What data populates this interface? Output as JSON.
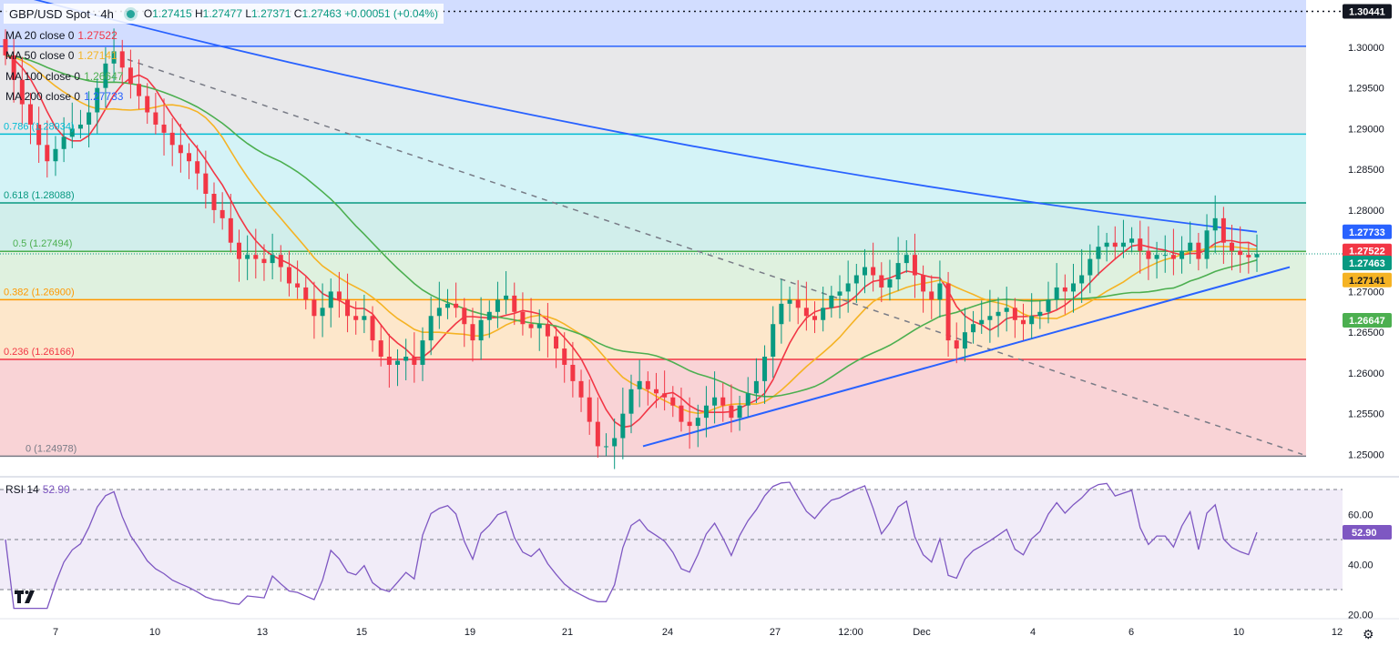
{
  "header": {
    "symbol": "GBP/USD Spot · 4h",
    "ohlc_prefix": "O",
    "open": "1.27415",
    "high_prefix": "H",
    "high": "1.27477",
    "low_prefix": "L",
    "low": "1.27371",
    "close_prefix": "C",
    "close": "1.27463",
    "change": "+0.00051 (+0.04%)"
  },
  "indicators": [
    {
      "label": "MA 20 close 0",
      "value": "1.27522",
      "color": "#f23645"
    },
    {
      "label": "MA 50 close 0",
      "value": "1.27141",
      "color": "#f5b324"
    },
    {
      "label": "MA 100 close 0",
      "value": "1.26647",
      "color": "#4caf50"
    },
    {
      "label": "MA 200 close 0",
      "value": "1.27733",
      "color": "#2962ff"
    }
  ],
  "rsi": {
    "label": "RSI 14",
    "value": "52.90",
    "color": "#7e57c2",
    "ticks": [
      "60.00",
      "40.00",
      "20.00"
    ],
    "upper": 70,
    "lower": 30,
    "mid": 50
  },
  "fib_levels": [
    {
      "ratio": "0",
      "price": 1.24978,
      "label": "0 (1.24978)",
      "color": "#787b86"
    },
    {
      "ratio": "0.236",
      "price": 1.26166,
      "label": "0.236 (1.26166)",
      "color": "#f23645"
    },
    {
      "ratio": "0.382",
      "price": 1.269,
      "label": "0.382 (1.26900)",
      "color": "#ff9800"
    },
    {
      "ratio": "0.5",
      "price": 1.27494,
      "label": "0.5 (1.27494)",
      "color": "#4caf50"
    },
    {
      "ratio": "0.618",
      "price": 1.28088,
      "label": "0.618 (1.28088)",
      "color": "#089981"
    },
    {
      "ratio": "0.786",
      "price": 1.28934,
      "label": "0.786 (1.28934)",
      "color": "#00bcd4"
    },
    {
      "ratio": "1",
      "price": 1.30011,
      "label": "1 (1.30011)",
      "color": "#2962ff"
    }
  ],
  "price_axis": {
    "ticks": [
      "1.30000",
      "1.29500",
      "1.29000",
      "1.28500",
      "1.28000",
      "1.27500",
      "1.27000",
      "1.26500",
      "1.26000",
      "1.25500",
      "1.25000"
    ],
    "badges": [
      {
        "text": "1.30441",
        "bg": "#131722",
        "fg": "#ffffff",
        "price": 1.30441
      },
      {
        "text": "1.27733",
        "bg": "#2962ff",
        "fg": "#ffffff",
        "price": 1.27733
      },
      {
        "text": "1.27522",
        "bg": "#f23645",
        "fg": "#ffffff",
        "price": 1.27522
      },
      {
        "text": "1.27463",
        "bg": "#089981",
        "fg": "#ffffff",
        "price": 1.27463
      },
      {
        "text": "1.27141",
        "bg": "#f5b324",
        "fg": "#131722",
        "price": 1.27141
      },
      {
        "text": "1.26647",
        "bg": "#4caf50",
        "fg": "#ffffff",
        "price": 1.26647
      }
    ]
  },
  "time_axis": [
    "7",
    "10",
    "13",
    "15",
    "19",
    "21",
    "24",
    "27",
    "12:00",
    "Dec",
    "4",
    "6",
    "10",
    "12"
  ],
  "colors": {
    "up": "#089981",
    "down": "#f23645",
    "trend": "#2962ff",
    "dashed": "#787b86"
  },
  "chart_data": {
    "type": "candlestick",
    "title": "GBP/USD Spot · 4h",
    "ylim": [
      1.2477,
      1.3058
    ],
    "overlays": [
      "MA 20",
      "MA 50",
      "MA 100",
      "MA 200",
      "Fibonacci retracement",
      "trendlines"
    ],
    "candles_close": [
      1.299,
      1.296,
      1.293,
      1.2905,
      1.288,
      1.286,
      1.2875,
      1.289,
      1.29,
      1.2905,
      1.292,
      1.295,
      1.298,
      1.2995,
      1.2975,
      1.2955,
      1.294,
      1.292,
      1.2905,
      1.2895,
      1.288,
      1.287,
      1.286,
      1.2845,
      1.282,
      1.28,
      1.279,
      1.276,
      1.274,
      1.2745,
      1.274,
      1.2735,
      1.2745,
      1.273,
      1.271,
      1.2705,
      1.269,
      1.267,
      1.268,
      1.27,
      1.269,
      1.267,
      1.2665,
      1.267,
      1.264,
      1.262,
      1.261,
      1.2615,
      1.262,
      1.261,
      1.264,
      1.267,
      1.268,
      1.2685,
      1.268,
      1.266,
      1.264,
      1.2665,
      1.2675,
      1.269,
      1.2695,
      1.2675,
      1.266,
      1.2655,
      1.266,
      1.2645,
      1.263,
      1.261,
      1.259,
      1.257,
      1.254,
      1.251,
      1.251,
      1.252,
      1.255,
      1.258,
      1.259,
      1.258,
      1.2575,
      1.257,
      1.256,
      1.254,
      1.2535,
      1.2545,
      1.256,
      1.257,
      1.256,
      1.2545,
      1.256,
      1.2575,
      1.259,
      1.262,
      1.266,
      1.2685,
      1.269,
      1.268,
      1.267,
      1.2665,
      1.268,
      1.2695,
      1.27,
      1.271,
      1.272,
      1.273,
      1.272,
      1.2705,
      1.2715,
      1.2735,
      1.2745,
      1.272,
      1.27,
      1.269,
      1.271,
      1.264,
      1.263,
      1.265,
      1.266,
      1.2665,
      1.267,
      1.2675,
      1.268,
      1.2665,
      1.266,
      1.267,
      1.2675,
      1.269,
      1.2705,
      1.27,
      1.271,
      1.272,
      1.274,
      1.2755,
      1.276,
      1.2755,
      1.276,
      1.2765,
      1.275,
      1.274,
      1.2745,
      1.2745,
      1.274,
      1.275,
      1.276,
      1.274,
      1.2775,
      1.279,
      1.276,
      1.275,
      1.2745,
      1.2742,
      1.2746
    ]
  }
}
